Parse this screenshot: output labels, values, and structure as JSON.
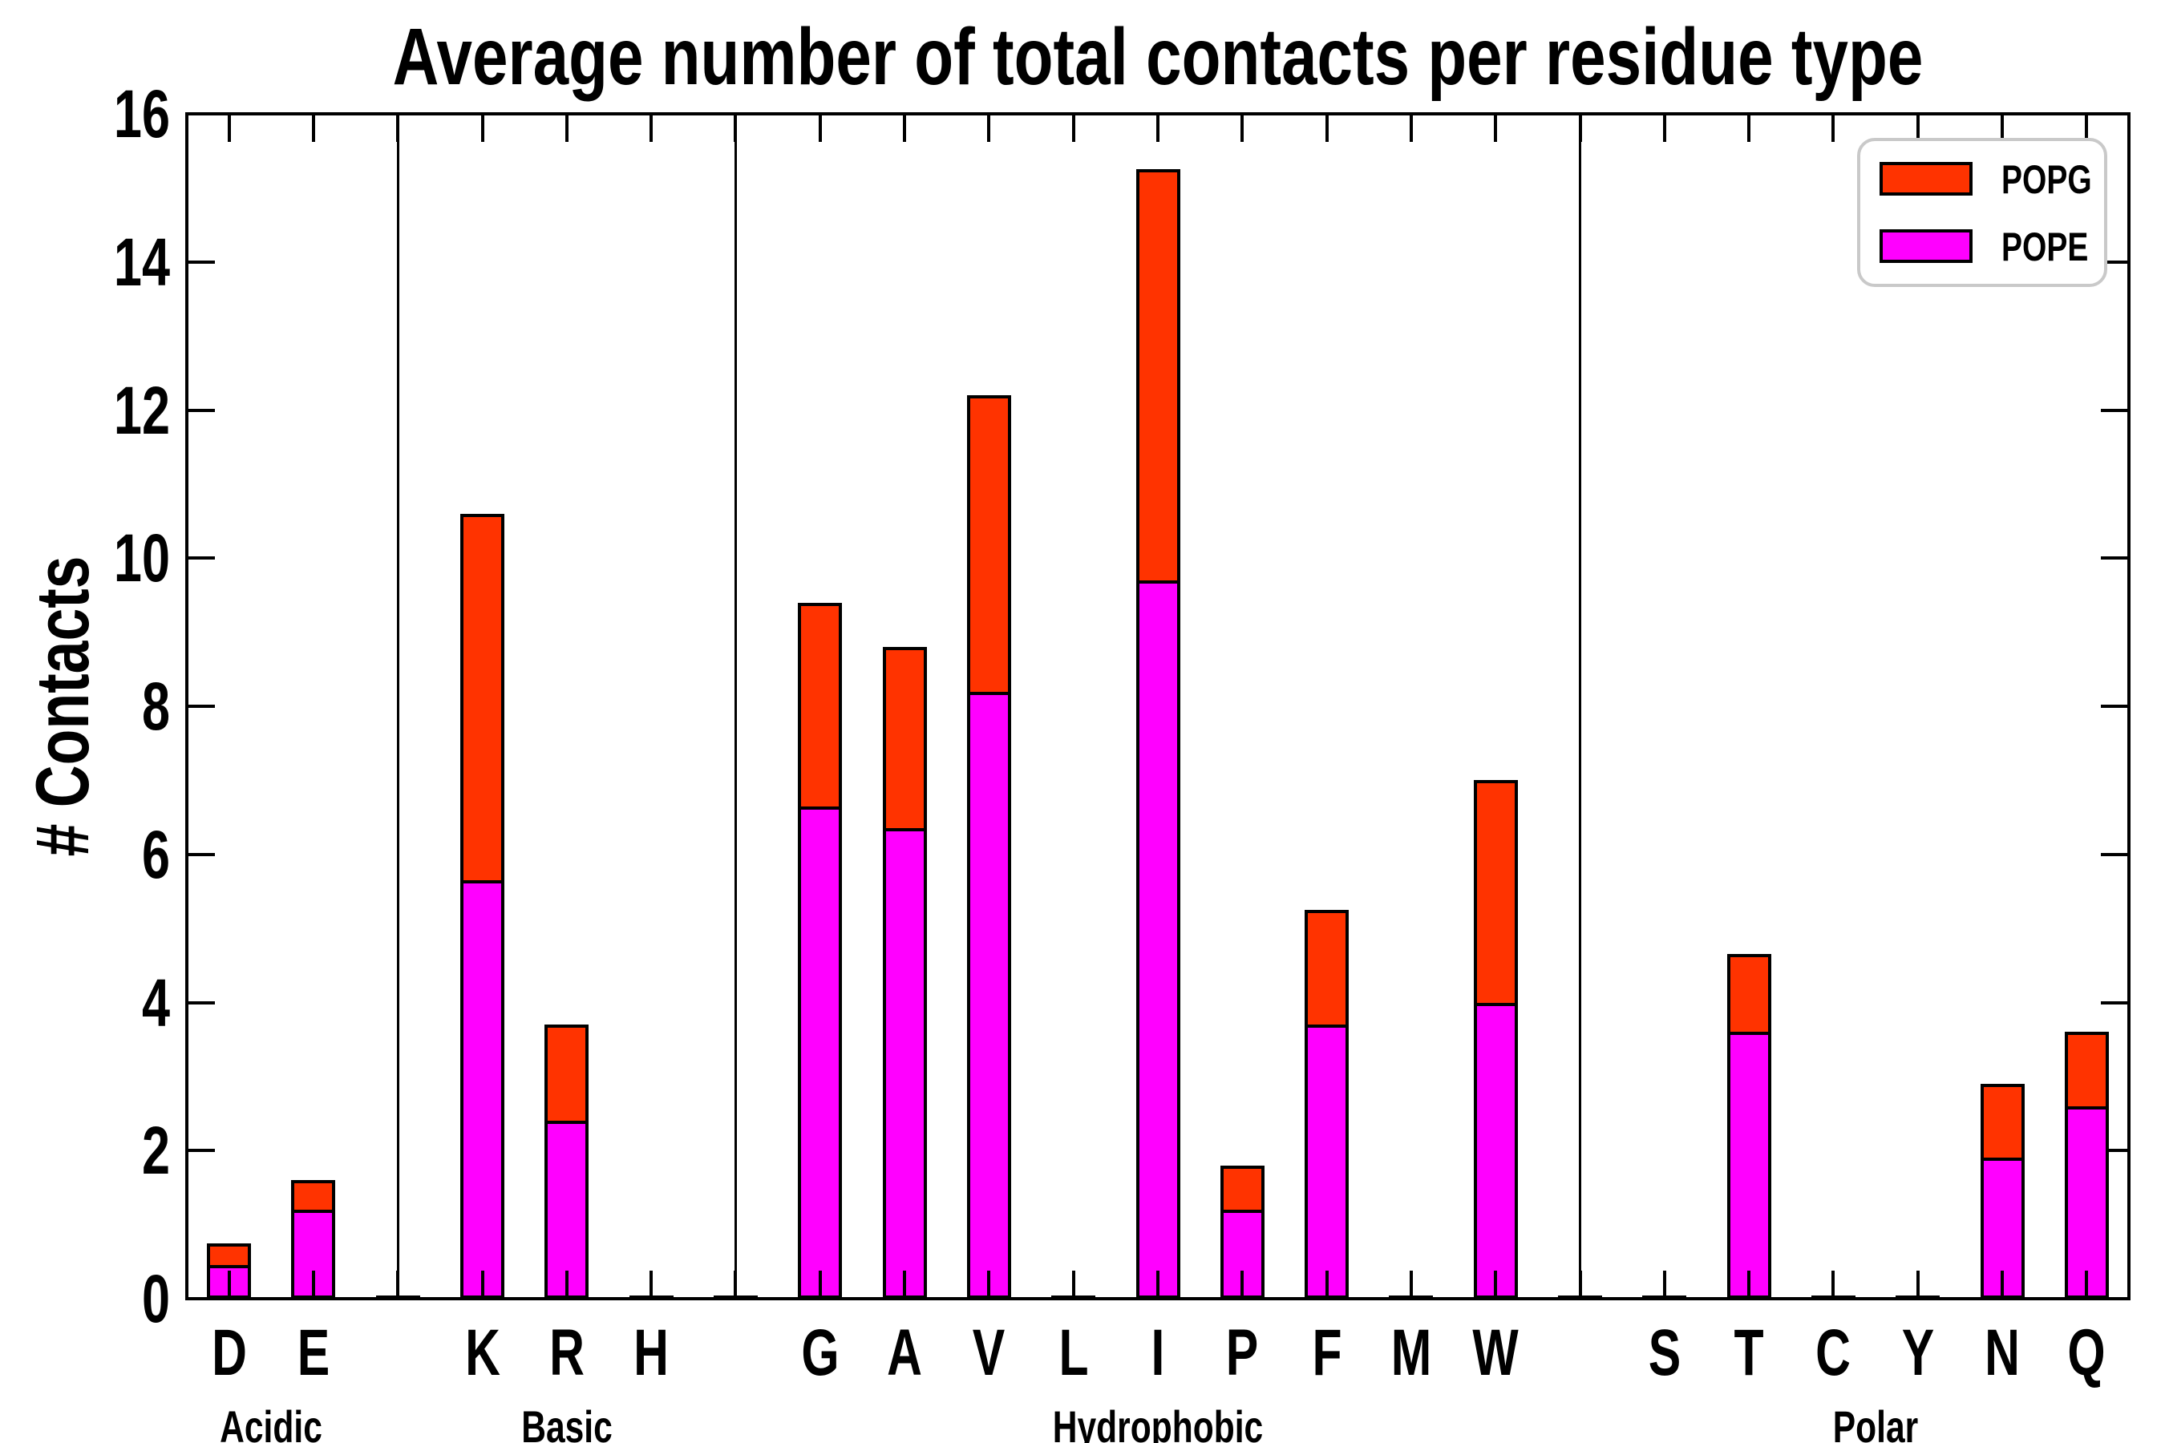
{
  "chart_data": {
    "type": "bar",
    "stacked": true,
    "title": "Average number of total contacts per residue type",
    "ylabel": "# Contacts",
    "xlabel": "",
    "ylim": [
      0,
      16
    ],
    "yticks": [
      0,
      2,
      4,
      6,
      8,
      10,
      12,
      14,
      16
    ],
    "grid": false,
    "legend_position": "upper right",
    "legend": [
      {
        "label": "POPG",
        "color": "#ff3300"
      },
      {
        "label": "POPE",
        "color": "#ff00ff"
      }
    ],
    "categories": [
      "D",
      "E",
      "K",
      "R",
      "H",
      "G",
      "A",
      "V",
      "L",
      "I",
      "P",
      "F",
      "M",
      "W",
      "S",
      "T",
      "C",
      "Y",
      "N",
      "Q"
    ],
    "groups": [
      {
        "label": "Acidic",
        "count": 2
      },
      {
        "label": "Basic",
        "count": 3
      },
      {
        "label": "Hydrophobic",
        "count": 9
      },
      {
        "label": "Polar",
        "count": 6
      }
    ],
    "series": [
      {
        "name": "POPE",
        "color": "#ff00ff",
        "values": [
          0.45,
          1.2,
          5.65,
          2.4,
          0,
          6.65,
          6.35,
          8.2,
          0,
          9.7,
          1.2,
          3.7,
          0,
          4.0,
          0,
          3.6,
          0,
          0,
          1.9,
          2.6
        ]
      },
      {
        "name": "POPG",
        "color": "#ff3300",
        "values": [
          0.3,
          0.4,
          4.95,
          1.3,
          0,
          2.75,
          2.45,
          4.0,
          0,
          5.55,
          0.6,
          1.55,
          0,
          3.0,
          0,
          1.05,
          0,
          0,
          1.0,
          1.0
        ]
      }
    ],
    "totals": [
      0.75,
      1.6,
      10.6,
      3.7,
      0,
      9.4,
      8.8,
      12.2,
      0,
      15.25,
      1.8,
      5.25,
      0,
      7.0,
      0,
      4.65,
      0,
      0,
      2.9,
      3.6
    ],
    "axis_color": "#000000",
    "background_color": "#ffffff"
  }
}
